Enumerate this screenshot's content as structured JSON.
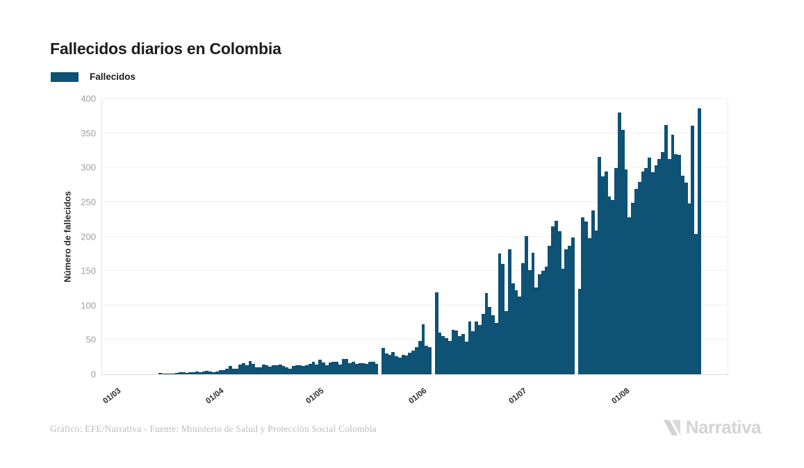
{
  "title": "Fallecidos diarios en Colombia",
  "legend": {
    "label": "Fallecidos",
    "swatch_color": "#0e5276"
  },
  "footer": {
    "credit": "Gráfico: EFE/Narrativa - Fuente: Ministerio de Salud y Protección Social Colombia",
    "brand": "Narrativa"
  },
  "chart_data": {
    "type": "bar",
    "title": "Fallecidos diarios en Colombia",
    "series_name": "Fallecidos",
    "xlabel": "",
    "ylabel": "Número de fallecidos",
    "ylim": [
      0,
      400
    ],
    "yticks": [
      0,
      50,
      100,
      150,
      200,
      250,
      300,
      350,
      400
    ],
    "xtick_labels": [
      "01/03",
      "01/04",
      "01/05",
      "01/06",
      "01/07",
      "01/08"
    ],
    "x_unit": "day",
    "x_first_value": "01/03",
    "grid": true,
    "legend_position": "top-left",
    "bar_color": "#0e5276",
    "values": [
      0,
      0,
      0,
      0,
      0,
      0,
      0,
      0,
      0,
      0,
      0,
      0,
      0,
      0,
      2,
      1,
      1,
      1,
      1,
      2,
      3,
      3,
      2,
      3,
      3,
      4,
      3,
      4,
      5,
      4,
      3,
      4,
      6,
      6,
      8,
      12,
      8,
      8,
      14,
      16,
      13,
      19,
      15,
      10,
      10,
      14,
      13,
      11,
      13,
      13,
      14,
      12,
      10,
      8,
      12,
      13,
      13,
      12,
      13,
      15,
      18,
      14,
      21,
      17,
      13,
      17,
      18,
      18,
      14,
      22,
      22,
      16,
      18,
      15,
      16,
      16,
      15,
      18,
      18,
      15,
      0,
      38,
      30,
      28,
      32,
      26,
      24,
      28,
      27,
      31,
      34,
      39,
      48,
      73,
      41,
      39,
      0,
      119,
      60,
      55,
      52,
      48,
      65,
      63,
      55,
      58,
      47,
      77,
      62,
      77,
      72,
      88,
      118,
      98,
      86,
      75,
      175,
      160,
      92,
      181,
      132,
      122,
      113,
      161,
      201,
      151,
      176,
      126,
      145,
      150,
      156,
      186,
      215,
      223,
      208,
      153,
      181,
      186,
      199,
      0,
      124,
      228,
      222,
      197,
      238,
      209,
      315,
      287,
      294,
      258,
      253,
      299,
      380,
      355,
      297,
      228,
      249,
      269,
      279,
      294,
      299,
      314,
      293,
      303,
      312,
      322,
      362,
      312,
      348,
      319,
      318,
      288,
      278,
      248,
      361,
      204,
      386
    ]
  }
}
